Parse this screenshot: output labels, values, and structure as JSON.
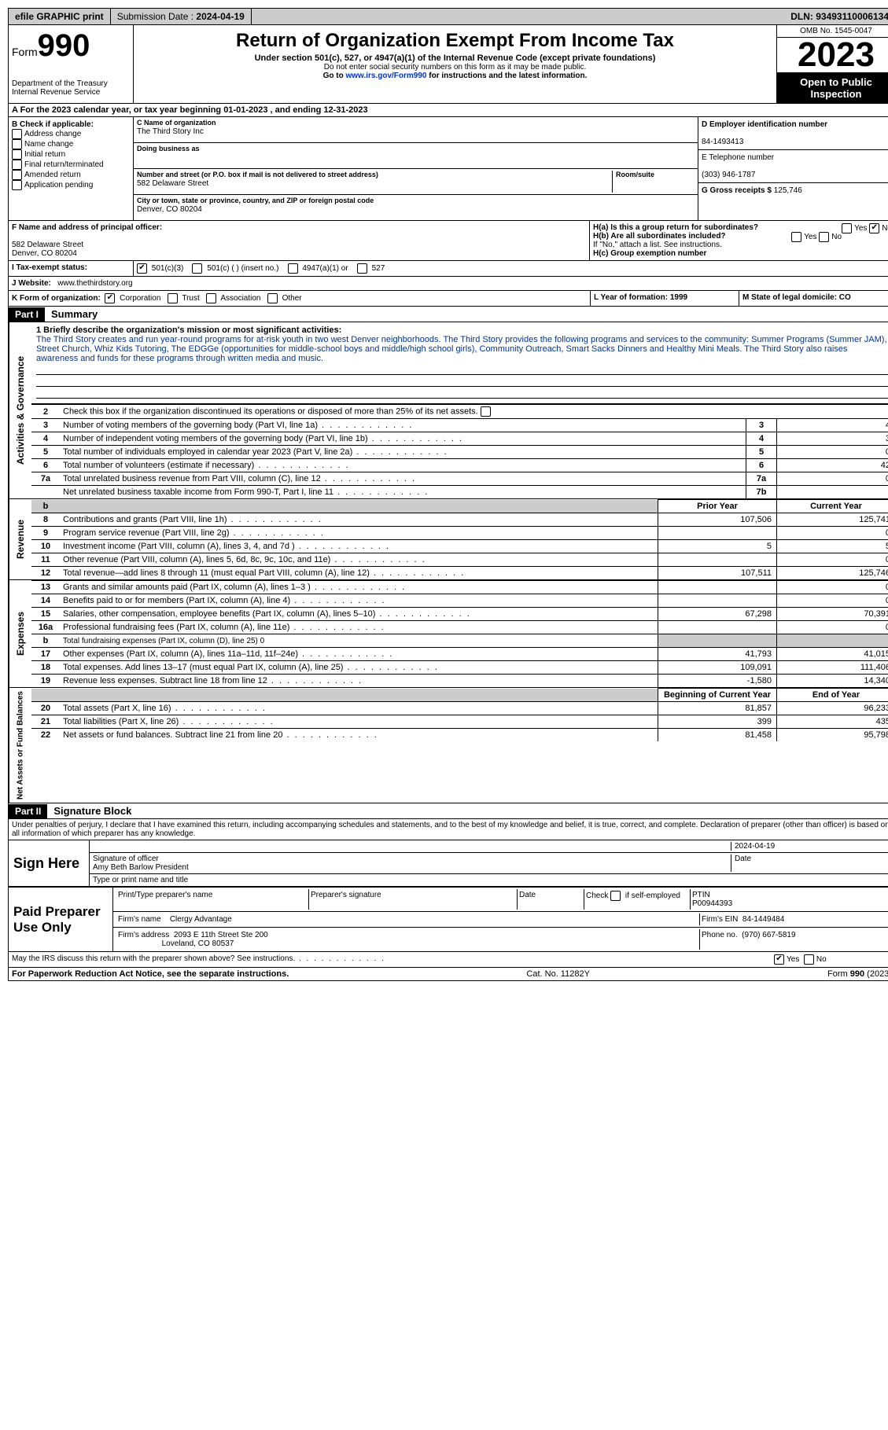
{
  "topbar": {
    "efile": "efile GRAPHIC print",
    "sub_label": "Submission Date : ",
    "sub_date": "2024-04-19",
    "dln_label": "DLN: ",
    "dln": "93493110006134"
  },
  "header": {
    "form_word": "Form",
    "form_num": "990",
    "dept": "Department of the Treasury Internal Revenue Service",
    "title": "Return of Organization Exempt From Income Tax",
    "sub": "Under section 501(c), 527, or 4947(a)(1) of the Internal Revenue Code (except private foundations)",
    "note1": "Do not enter social security numbers on this form as it may be made public.",
    "note2_pre": "Go to ",
    "note2_link": "www.irs.gov/Form990",
    "note2_post": " for instructions and the latest information.",
    "omb": "OMB No. 1545-0047",
    "year": "2023",
    "inspect": "Open to Public Inspection"
  },
  "rowA": "A  For the 2023 calendar year, or tax year beginning 01-01-2023   , and ending 12-31-2023",
  "colB": {
    "title": "B Check if applicable:",
    "items": [
      "Address change",
      "Name change",
      "Initial return",
      "Final return/terminated",
      "Amended return",
      "Application pending"
    ]
  },
  "colC": {
    "name_label": "C Name of organization",
    "name": "The Third Story Inc",
    "dba_label": "Doing business as",
    "dba": "",
    "addr_label": "Number and street (or P.O. box if mail is not delivered to street address)",
    "room_label": "Room/suite",
    "addr": "582 Delaware Street",
    "city_label": "City or town, state or province, country, and ZIP or foreign postal code",
    "city": "Denver, CO  80204"
  },
  "colD": {
    "ein_label": "D Employer identification number",
    "ein": "84-1493413",
    "phone_label": "E Telephone number",
    "phone": "(303) 946-1787",
    "gross_label": "G Gross receipts $ ",
    "gross": "125,746"
  },
  "rowF": {
    "label": "F  Name and address of principal officer:",
    "addr1": "582 Delaware Street",
    "addr2": "Denver, CO  80204"
  },
  "rowH": {
    "ha": "H(a)  Is this a group return for subordinates?",
    "hb": "H(b)  Are all subordinates included?",
    "hb_note": "If \"No,\" attach a list. See instructions.",
    "hc": "H(c)  Group exemption number",
    "yes": "Yes",
    "no": "No"
  },
  "rowI": {
    "label": "I    Tax-exempt status:",
    "opts": [
      "501(c)(3)",
      "501(c) (  ) (insert no.)",
      "4947(a)(1) or",
      "527"
    ]
  },
  "rowJ": {
    "label": "J   Website:",
    "value": "www.thethirdstory.org"
  },
  "rowK": {
    "label": "K Form of organization:",
    "opts": [
      "Corporation",
      "Trust",
      "Association",
      "Other"
    ],
    "L": "L Year of formation: 1999",
    "M": "M State of legal domicile: CO"
  },
  "part1": {
    "label": "Part I",
    "title": "Summary"
  },
  "mission": {
    "label": "1   Briefly describe the organization's mission or most significant activities:",
    "text": "The Third Story creates and run year-round programs for at-risk youth in two west Denver neighborhoods. The Third Story provides the following programs and services to the community: Summer Programs (Summer JAM), Street Church, Whiz Kids Tutoring, The EDGGe (opportunities for middle-school boys and middle/high school girls), Community Outreach, Smart Sacks Dinners and Healthy Mini Meals. The Third Story also raises awareness and funds for these programs through written media and music."
  },
  "gov_label": "Activities & Governance",
  "gov_lines": {
    "l2": "Check this box       if the organization discontinued its operations or disposed of more than 25% of its net assets.",
    "l3": {
      "n": "3",
      "t": "Number of voting members of the governing body (Part VI, line 1a)",
      "v": "4"
    },
    "l4": {
      "n": "4",
      "t": "Number of independent voting members of the governing body (Part VI, line 1b)",
      "v": "3"
    },
    "l5": {
      "n": "5",
      "t": "Total number of individuals employed in calendar year 2023 (Part V, line 2a)",
      "v": "0"
    },
    "l6": {
      "n": "6",
      "t": "Total number of volunteers (estimate if necessary)",
      "v": "42"
    },
    "l7a": {
      "n": "7a",
      "t": "Total unrelated business revenue from Part VIII, column (C), line 12",
      "v": "0"
    },
    "l7b": {
      "n": "7b",
      "t": "Net unrelated business taxable income from Form 990-T, Part I, line 11",
      "v": ""
    }
  },
  "rev_label": "Revenue",
  "col_h1": "Prior Year",
  "col_h2": "Current Year",
  "rev_lines": [
    {
      "n": "8",
      "t": "Contributions and grants (Part VIII, line 1h)",
      "p": "107,506",
      "c": "125,741"
    },
    {
      "n": "9",
      "t": "Program service revenue (Part VIII, line 2g)",
      "p": "",
      "c": "0"
    },
    {
      "n": "10",
      "t": "Investment income (Part VIII, column (A), lines 3, 4, and 7d )",
      "p": "5",
      "c": "5"
    },
    {
      "n": "11",
      "t": "Other revenue (Part VIII, column (A), lines 5, 6d, 8c, 9c, 10c, and 11e)",
      "p": "",
      "c": "0"
    },
    {
      "n": "12",
      "t": "Total revenue—add lines 8 through 11 (must equal Part VIII, column (A), line 12)",
      "p": "107,511",
      "c": "125,746"
    }
  ],
  "exp_label": "Expenses",
  "exp_lines": [
    {
      "n": "13",
      "t": "Grants and similar amounts paid (Part IX, column (A), lines 1–3 )",
      "p": "",
      "c": "0"
    },
    {
      "n": "14",
      "t": "Benefits paid to or for members (Part IX, column (A), line 4)",
      "p": "",
      "c": "0"
    },
    {
      "n": "15",
      "t": "Salaries, other compensation, employee benefits (Part IX, column (A), lines 5–10)",
      "p": "67,298",
      "c": "70,391"
    },
    {
      "n": "16a",
      "t": "Professional fundraising fees (Part IX, column (A), line 11e)",
      "p": "",
      "c": "0"
    },
    {
      "n": "b",
      "t": "Total fundraising expenses (Part IX, column (D), line 25) 0",
      "p": "shade",
      "c": "shade",
      "small": true
    },
    {
      "n": "17",
      "t": "Other expenses (Part IX, column (A), lines 11a–11d, 11f–24e)",
      "p": "41,793",
      "c": "41,015"
    },
    {
      "n": "18",
      "t": "Total expenses. Add lines 13–17 (must equal Part IX, column (A), line 25)",
      "p": "109,091",
      "c": "111,406"
    },
    {
      "n": "19",
      "t": "Revenue less expenses. Subtract line 18 from line 12",
      "p": "-1,580",
      "c": "14,340"
    }
  ],
  "net_label": "Net Assets or Fund Balances",
  "net_h1": "Beginning of Current Year",
  "net_h2": "End of Year",
  "net_lines": [
    {
      "n": "20",
      "t": "Total assets (Part X, line 16)",
      "p": "81,857",
      "c": "96,233"
    },
    {
      "n": "21",
      "t": "Total liabilities (Part X, line 26)",
      "p": "399",
      "c": "435"
    },
    {
      "n": "22",
      "t": "Net assets or fund balances. Subtract line 21 from line 20",
      "p": "81,458",
      "c": "95,798"
    }
  ],
  "part2": {
    "label": "Part II",
    "title": "Signature Block",
    "penalty": "Under penalties of perjury, I declare that I have examined this return, including accompanying schedules and statements, and to the best of my knowledge and belief, it is true, correct, and complete. Declaration of preparer (other than officer) is based on all information of which preparer has any knowledge."
  },
  "sign": {
    "label": "Sign Here",
    "sig_label": "Signature of officer",
    "date_label": "Date",
    "date": "2024-04-19",
    "name": "Amy Beth Barlow President",
    "name_label": "Type or print name and title"
  },
  "prep": {
    "label": "Paid Preparer Use Only",
    "h1": "Print/Type preparer's name",
    "h2": "Preparer's signature",
    "h3": "Date",
    "h4_pre": "Check",
    "h4_post": "if self-employed",
    "h5": "PTIN",
    "ptin": "P00944393",
    "firm_label": "Firm's name",
    "firm": "Clergy Advantage",
    "ein_label": "Firm's EIN",
    "ein": "84-1449484",
    "addr_label": "Firm's address",
    "addr1": "2093 E 11th Street Ste 200",
    "addr2": "Loveland, CO  80537",
    "phone_label": "Phone no.",
    "phone": "(970) 667-5819"
  },
  "discuss": "May the IRS discuss this return with the preparer shown above? See instructions.",
  "footer": {
    "left": "For Paperwork Reduction Act Notice, see the separate instructions.",
    "mid": "Cat. No. 11282Y",
    "right_pre": "Form ",
    "right_bold": "990",
    "right_post": " (2023)"
  }
}
